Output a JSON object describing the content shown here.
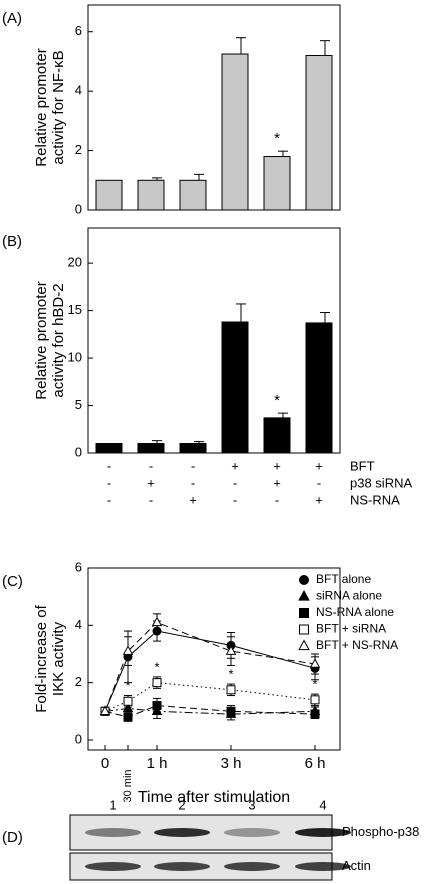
{
  "chart_data": [
    {
      "type": "bar",
      "label": "(A)",
      "ylabel": [
        "Relative promoter",
        "activity for NF-κB"
      ],
      "values": [
        1,
        1.0,
        1.0,
        5.25,
        1.8,
        5.2
      ],
      "errors": [
        null,
        0.08,
        0.2,
        0.55,
        0.18,
        0.5
      ],
      "markers": [
        null,
        null,
        null,
        null,
        "*",
        null
      ],
      "color": "#c8c8c8",
      "ylim": [
        0,
        6.9
      ],
      "yticks": [
        0,
        2,
        4,
        6
      ]
    },
    {
      "type": "bar",
      "label": "(B)",
      "ylabel": [
        "Relative promoter",
        "activity for hBD-2"
      ],
      "values": [
        1,
        1,
        1,
        13.8,
        3.7,
        13.7
      ],
      "errors": [
        null,
        0.3,
        0.2,
        1.9,
        0.5,
        1.1
      ],
      "markers": [
        null,
        null,
        null,
        null,
        "*",
        null
      ],
      "color": "#000000",
      "ylim": [
        0,
        23.7
      ],
      "yticks": [
        0,
        5,
        10,
        15,
        20
      ],
      "treatments": [
        {
          "name": "BFT",
          "signs": [
            "-",
            "-",
            "-",
            "+",
            "+",
            "+"
          ]
        },
        {
          "name": "p38 siRNA",
          "signs": [
            "-",
            "+",
            "-",
            "-",
            "+",
            "-"
          ]
        },
        {
          "name": "NS-RNA",
          "signs": [
            "-",
            "-",
            "+",
            "-",
            "-",
            "+"
          ]
        }
      ]
    },
    {
      "type": "line",
      "label": "(C)",
      "ylabel": [
        "Fold-increase of",
        "IKK activity"
      ],
      "xlabel": "Time after stimulation",
      "categories": [
        "0",
        "30 min",
        "1 h",
        "3 h",
        "6 h"
      ],
      "ylim": [
        -0.35,
        6
      ],
      "yticks": [
        0,
        2,
        4,
        6
      ],
      "series": [
        {
          "name": "BFT alone",
          "color": "#000000",
          "marker": "circle",
          "filled": true,
          "dash": "solid",
          "values": [
            1,
            2.9,
            3.8,
            3.3,
            2.5
          ],
          "errors": [
            null,
            0.9,
            0.35,
            0.45,
            0.4
          ]
        },
        {
          "name": "siRNA alone",
          "color": "#000000",
          "marker": "triangle",
          "filled": true,
          "dash": "dashdot",
          "values": [
            1,
            1.1,
            1.0,
            0.9,
            1.0
          ],
          "errors": [
            null,
            0.2,
            0.25,
            0.2,
            0.15
          ]
        },
        {
          "name": "NS-RNA alone",
          "color": "#000000",
          "marker": "square",
          "filled": true,
          "dash": "dashed",
          "values": [
            1,
            0.8,
            1.2,
            1.0,
            0.9
          ],
          "errors": [
            null,
            0.15,
            0.25,
            0.2,
            0.15
          ]
        },
        {
          "name": "BFT + siRNA",
          "color": "#000000",
          "marker": "square",
          "filled": false,
          "dash": "dotted",
          "values": [
            1,
            1.35,
            2.0,
            1.75,
            1.4
          ],
          "errors": [
            null,
            0.2,
            0.2,
            0.2,
            0.2
          ],
          "markers": [
            null,
            "*",
            "*",
            "*",
            "*"
          ]
        },
        {
          "name": "BFT + NS-RNA",
          "color": "#000000",
          "marker": "triangle",
          "filled": false,
          "dash": "dashed",
          "values": [
            1,
            3.1,
            4.1,
            3.1,
            2.65
          ],
          "errors": [
            null,
            0.5,
            0.3,
            0.5,
            0.35
          ]
        }
      ]
    },
    {
      "type": "blot",
      "label": "(D)",
      "lanes": [
        "1",
        "2",
        "3",
        "4"
      ],
      "rows": [
        "Phospho-p38",
        "Actin"
      ]
    }
  ]
}
